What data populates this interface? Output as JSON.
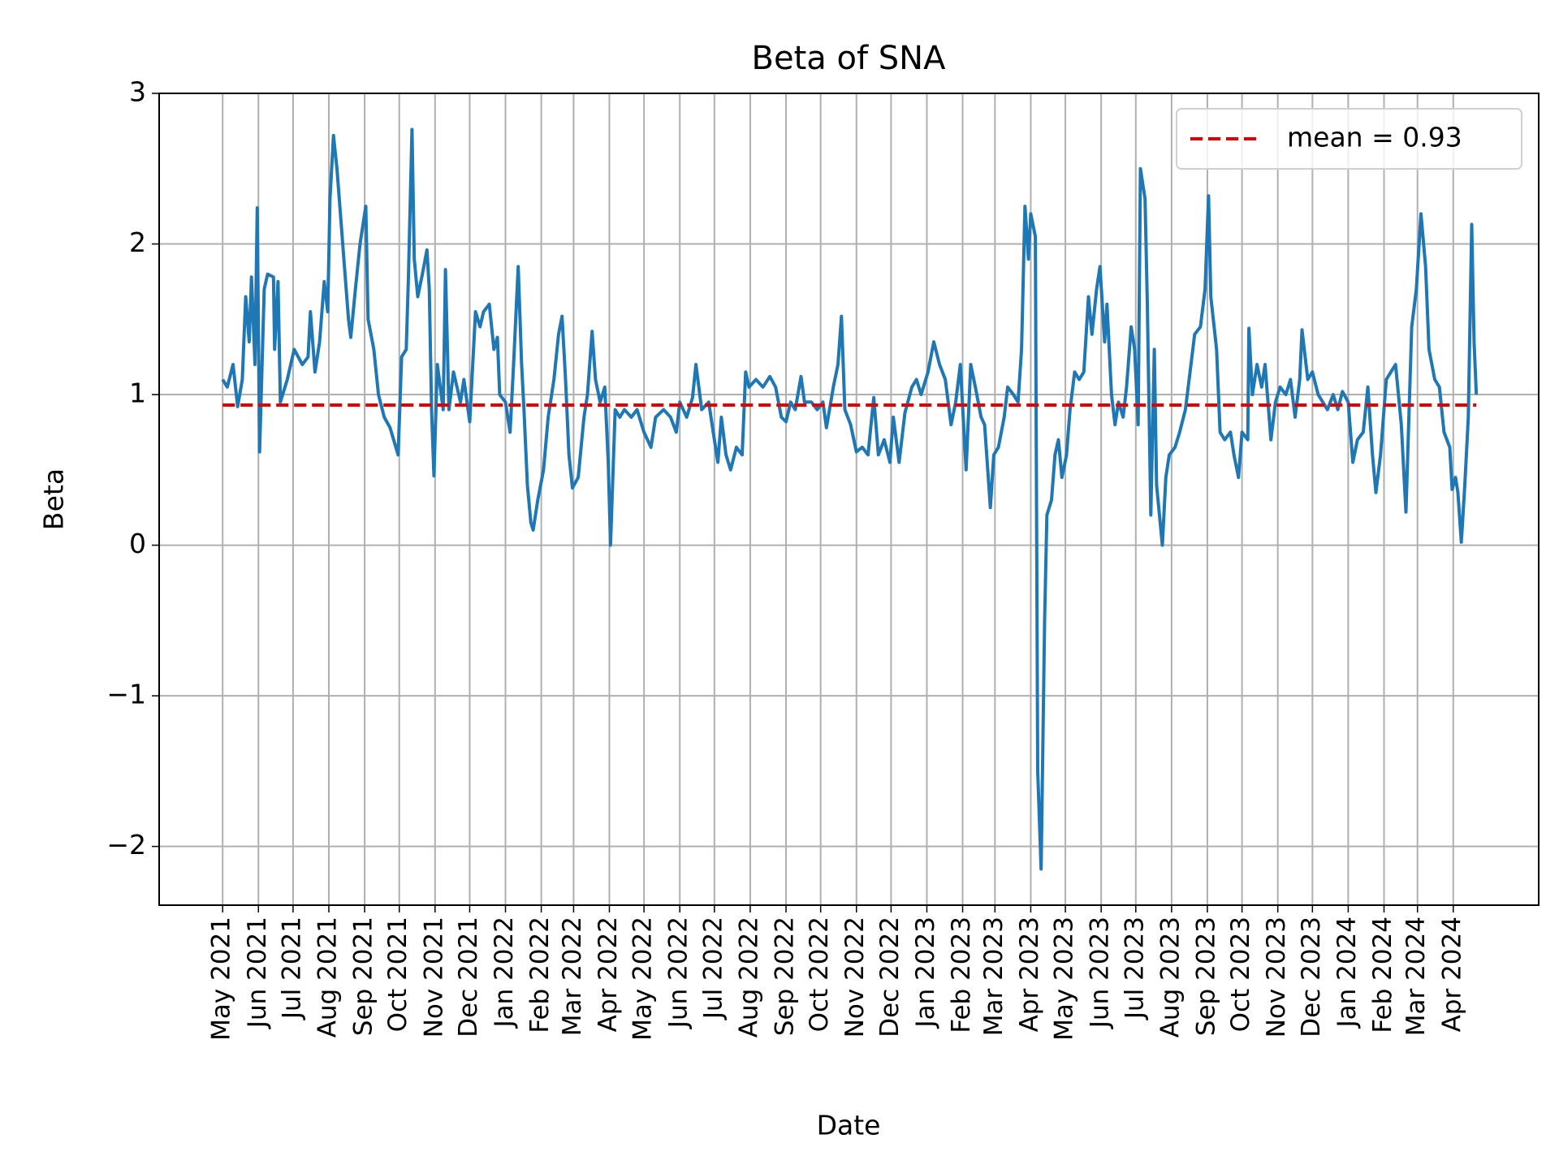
{
  "chart_data": {
    "type": "line",
    "title": "Beta of SNA",
    "xlabel": "Date",
    "ylabel": "Beta",
    "x": [
      0,
      4,
      9,
      13,
      17,
      20,
      23,
      25,
      28,
      30,
      32,
      36,
      39,
      44,
      45,
      48,
      50,
      56,
      62,
      69,
      74,
      76,
      80,
      84,
      88,
      91,
      93,
      96,
      99,
      105,
      109,
      111,
      115,
      119,
      124,
      126,
      131,
      135,
      140,
      145,
      152,
      155,
      159,
      161,
      164,
      166,
      169,
      173,
      177,
      179,
      181,
      183,
      186,
      191,
      193,
      196,
      200,
      206,
      209,
      214,
      219,
      223,
      226,
      231,
      235,
      238,
      240,
      245,
      249,
      252,
      256,
      259,
      261,
      264,
      267,
      269,
      273,
      278,
      282,
      287,
      291,
      294,
      297,
      300,
      303,
      308,
      313,
      316,
      320,
      323,
      327,
      331,
      334,
      336,
      340,
      344,
      348,
      354,
      359,
      365,
      371,
      375,
      382,
      388,
      393,
      396,
      402,
      407,
      410,
      415,
      421,
      425,
      429,
      432,
      436,
      440,
      445,
      450,
      453,
      456,
      462,
      468,
      474,
      479,
      484,
      488,
      492,
      496,
      501,
      504,
      510,
      515,
      520,
      523,
      529,
      533,
      536,
      539,
      544,
      549,
      554,
      559,
      564,
      568,
      573,
      578,
      581,
      586,
      591,
      597,
      601,
      605,
      611,
      616,
      621,
      626,
      631,
      635,
      639,
      644,
      648,
      652,
      657,
      660,
      665,
      668,
      672,
      677,
      680,
      685,
      689,
      692,
      695,
      698,
      700,
      704,
      706,
      709,
      712,
      714,
      718,
      721,
      724,
      727,
      731,
      734,
      738,
      742,
      746,
      750,
      753,
      757,
      760,
      764,
      766,
      770,
      773,
      776,
      780,
      783,
      787,
      790,
      793,
      795,
      799,
      801,
      804,
      807,
      809,
      814,
      817,
      820,
      825,
      829,
      834,
      838,
      842,
      847,
      851,
      854,
      856,
      861,
      864,
      868,
      873,
      876,
      880,
      883,
      888,
      889,
      892,
      896,
      900,
      903,
      908,
      912,
      916,
      921,
      925,
      929,
      933,
      935,
      940,
      944,
      949,
      953,
      957,
      962,
      966,
      970,
      975,
      979,
      983,
      988,
      992,
      996,
      999,
      1003,
      1008,
      1012,
      1016,
      1021,
      1025,
      1030,
      1034,
      1038,
      1042,
      1045,
      1050,
      1054,
      1058,
      1063,
      1065,
      1068,
      1070,
      1073,
      1076,
      1079,
      1082,
      1084,
      1086
    ],
    "series": [
      {
        "color": "#1f77b4",
        "values": [
          1.1,
          1.05,
          1.2,
          0.92,
          1.1,
          1.65,
          1.35,
          1.78,
          1.2,
          2.24,
          0.62,
          1.7,
          1.8,
          1.78,
          1.3,
          1.75,
          0.95,
          1.1,
          1.3,
          1.2,
          1.25,
          1.55,
          1.15,
          1.35,
          1.75,
          1.55,
          2.3,
          2.72,
          2.5,
          1.9,
          1.5,
          1.38,
          1.7,
          2.0,
          2.25,
          1.5,
          1.3,
          1.0,
          0.85,
          0.78,
          0.6,
          1.25,
          1.3,
          1.8,
          2.76,
          1.9,
          1.65,
          1.8,
          1.96,
          1.7,
          0.9,
          0.46,
          1.2,
          0.9,
          1.83,
          0.9,
          1.15,
          0.95,
          1.1,
          0.82,
          1.55,
          1.45,
          1.55,
          1.6,
          1.3,
          1.38,
          1.0,
          0.95,
          0.75,
          1.2,
          1.85,
          1.2,
          0.9,
          0.4,
          0.15,
          0.1,
          0.3,
          0.5,
          0.85,
          1.1,
          1.4,
          1.52,
          1.1,
          0.6,
          0.38,
          0.45,
          0.85,
          1.0,
          1.42,
          1.1,
          0.95,
          1.05,
          0.55,
          0.0,
          0.9,
          0.85,
          0.9,
          0.85,
          0.9,
          0.75,
          0.65,
          0.85,
          0.9,
          0.85,
          0.75,
          0.95,
          0.85,
          0.98,
          1.2,
          0.9,
          0.95,
          0.75,
          0.55,
          0.85,
          0.6,
          0.5,
          0.65,
          0.6,
          1.15,
          1.05,
          1.1,
          1.05,
          1.12,
          1.05,
          0.85,
          0.82,
          0.95,
          0.9,
          1.12,
          0.95,
          0.95,
          0.9,
          0.95,
          0.78,
          1.05,
          1.2,
          1.52,
          0.9,
          0.8,
          0.62,
          0.65,
          0.6,
          0.98,
          0.6,
          0.7,
          0.55,
          0.85,
          0.55,
          0.88,
          1.05,
          1.1,
          1.0,
          1.15,
          1.35,
          1.2,
          1.1,
          0.8,
          0.95,
          1.2,
          0.5,
          1.2,
          1.05,
          0.85,
          0.8,
          0.25,
          0.6,
          0.65,
          0.85,
          1.05,
          1.0,
          0.95,
          1.3,
          2.25,
          1.9,
          2.2,
          2.05,
          -1.5,
          -2.15,
          -0.5,
          0.2,
          0.3,
          0.6,
          0.7,
          0.45,
          0.6,
          0.9,
          1.15,
          1.1,
          1.15,
          1.65,
          1.4,
          1.7,
          1.85,
          1.35,
          1.6,
          1.0,
          0.8,
          0.95,
          0.85,
          1.05,
          1.45,
          1.3,
          0.8,
          2.5,
          2.3,
          1.6,
          0.2,
          1.3,
          0.4,
          0.0,
          0.45,
          0.6,
          0.65,
          0.75,
          0.9,
          1.15,
          1.4,
          1.45,
          1.7,
          2.32,
          1.65,
          1.3,
          0.75,
          0.7,
          0.75,
          0.6,
          0.45,
          0.75,
          0.7,
          1.44,
          1.0,
          1.2,
          1.05,
          1.2,
          0.7,
          0.95,
          1.05,
          1.0,
          1.1,
          0.85,
          1.1,
          1.43,
          1.1,
          1.15,
          1.0,
          0.95,
          0.9,
          1.0,
          0.9,
          1.02,
          0.95,
          0.55,
          0.7,
          0.75,
          1.05,
          0.6,
          0.35,
          0.6,
          1.1,
          1.15,
          1.2,
          0.8,
          0.22,
          1.45,
          1.7,
          2.2,
          1.85,
          1.3,
          1.1,
          1.05,
          0.75,
          0.65,
          0.37,
          0.45,
          0.35,
          0.02,
          0.4,
          0.85,
          2.13,
          1.35,
          1.0
        ]
      }
    ],
    "mean_line": {
      "value": 0.93,
      "label": "mean = 0.93",
      "color": "#e00000",
      "dashed": true
    },
    "legend": "upper right",
    "grid": true,
    "xlim": [
      -55,
      1140
    ],
    "xticks": [
      {
        "value": 0,
        "label": "May 2021"
      },
      {
        "value": 31,
        "label": "Jun 2021"
      },
      {
        "value": 61,
        "label": "Jul 2021"
      },
      {
        "value": 92,
        "label": "Aug 2021"
      },
      {
        "value": 123,
        "label": "Sep 2021"
      },
      {
        "value": 153,
        "label": "Oct 2021"
      },
      {
        "value": 184,
        "label": "Nov 2021"
      },
      {
        "value": 214,
        "label": "Dec 2021"
      },
      {
        "value": 245,
        "label": "Jan 2022"
      },
      {
        "value": 276,
        "label": "Feb 2022"
      },
      {
        "value": 304,
        "label": "Mar 2022"
      },
      {
        "value": 335,
        "label": "Apr 2022"
      },
      {
        "value": 365,
        "label": "May 2022"
      },
      {
        "value": 396,
        "label": "Jun 2022"
      },
      {
        "value": 426,
        "label": "Jul 2022"
      },
      {
        "value": 457,
        "label": "Aug 2022"
      },
      {
        "value": 488,
        "label": "Sep 2022"
      },
      {
        "value": 518,
        "label": "Oct 2022"
      },
      {
        "value": 549,
        "label": "Nov 2022"
      },
      {
        "value": 579,
        "label": "Dec 2022"
      },
      {
        "value": 610,
        "label": "Jan 2023"
      },
      {
        "value": 641,
        "label": "Feb 2023"
      },
      {
        "value": 669,
        "label": "Mar 2023"
      },
      {
        "value": 700,
        "label": "Apr 2023"
      },
      {
        "value": 730,
        "label": "May 2023"
      },
      {
        "value": 761,
        "label": "Jun 2023"
      },
      {
        "value": 791,
        "label": "Jul 2023"
      },
      {
        "value": 822,
        "label": "Aug 2023"
      },
      {
        "value": 853,
        "label": "Sep 2023"
      },
      {
        "value": 883,
        "label": "Oct 2023"
      },
      {
        "value": 914,
        "label": "Nov 2023"
      },
      {
        "value": 944,
        "label": "Dec 2023"
      },
      {
        "value": 975,
        "label": "Jan 2024"
      },
      {
        "value": 1006,
        "label": "Feb 2024"
      },
      {
        "value": 1035,
        "label": "Mar 2024"
      },
      {
        "value": 1066,
        "label": "Apr 2024"
      }
    ],
    "ylim": [
      -2.39,
      3.0
    ],
    "yticks": [
      {
        "value": -2,
        "label": "−2"
      },
      {
        "value": -1,
        "label": "−1"
      },
      0,
      1,
      2,
      3
    ]
  }
}
